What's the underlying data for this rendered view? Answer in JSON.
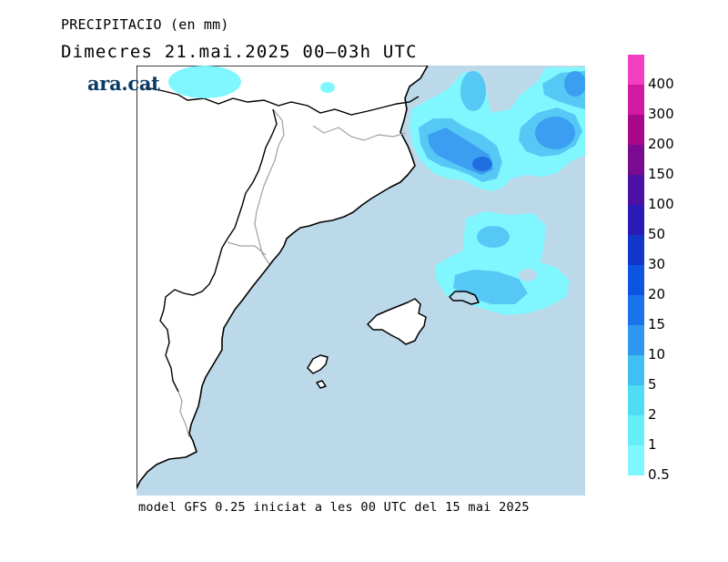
{
  "title": {
    "line1": "PRECIPITACIO (en mm)",
    "line2": "Dimecres  21.mai.2025 00–03h UTC"
  },
  "brand": "ara.cat",
  "footer": "model GFS 0.25 iniciat a les 00 UTC del 15 mai 2025",
  "colors": {
    "sea": "#bcd9ea",
    "land": "#ffffff",
    "coast": "#000000",
    "borders": "#a0a0a0",
    "precip_light": "#80f7ff",
    "precip_mid": "#55c8f5",
    "precip_high": "#3c9ef0",
    "precip_max": "#1f6fe0"
  },
  "legend": {
    "levels": [
      {
        "label": "0.5",
        "color": "#80f7ff"
      },
      {
        "label": "1",
        "color": "#66eef8"
      },
      {
        "label": "2",
        "color": "#50dcf5"
      },
      {
        "label": "5",
        "color": "#41bff2"
      },
      {
        "label": "10",
        "color": "#2f97ef"
      },
      {
        "label": "15",
        "color": "#1a73ea"
      },
      {
        "label": "20",
        "color": "#0b55e0"
      },
      {
        "label": "30",
        "color": "#1236c8"
      },
      {
        "label": "50",
        "color": "#2a1bb4"
      },
      {
        "label": "100",
        "color": "#4d10a4"
      },
      {
        "label": "150",
        "color": "#7a0a90"
      },
      {
        "label": "200",
        "color": "#a8088a"
      },
      {
        "label": "300",
        "color": "#d11aa2"
      },
      {
        "label": "400",
        "color": "#f03fbf"
      }
    ]
  }
}
